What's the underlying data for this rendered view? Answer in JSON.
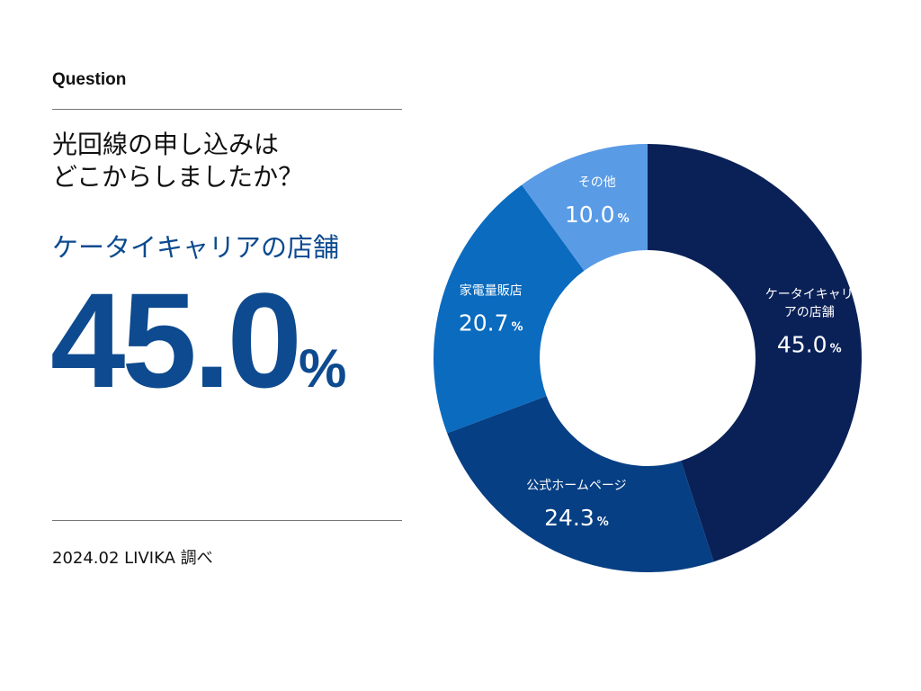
{
  "header": {
    "label": "Question"
  },
  "question": {
    "line1": "光回線の申し込みは",
    "line2": "どこからしましたか？"
  },
  "highlight": {
    "answer": "ケータイキャリアの店舗",
    "value": "45.0",
    "unit": "%"
  },
  "source": "2024.02 LIVIKA 調べ",
  "chart_data": {
    "type": "pie",
    "donut": true,
    "title": "光回線の申し込みはどこからしましたか？",
    "unit": "%",
    "categories": [
      "ケータイキャリアの店舗",
      "公式ホームページ",
      "家電量販店",
      "その他"
    ],
    "label_lines": [
      [
        "ケータイキャリ",
        "アの店舗"
      ],
      [
        "公式ホームページ"
      ],
      [
        "家電量販店"
      ],
      [
        "その他"
      ]
    ],
    "values": [
      45.0,
      24.3,
      20.7,
      10.0
    ],
    "value_labels": [
      "45.0",
      "24.3",
      "20.7",
      "10.0"
    ],
    "colors": [
      "#0a2158",
      "#063f83",
      "#0a6bbf",
      "#5a9be6"
    ],
    "start": "top",
    "direction": "clockwise"
  }
}
